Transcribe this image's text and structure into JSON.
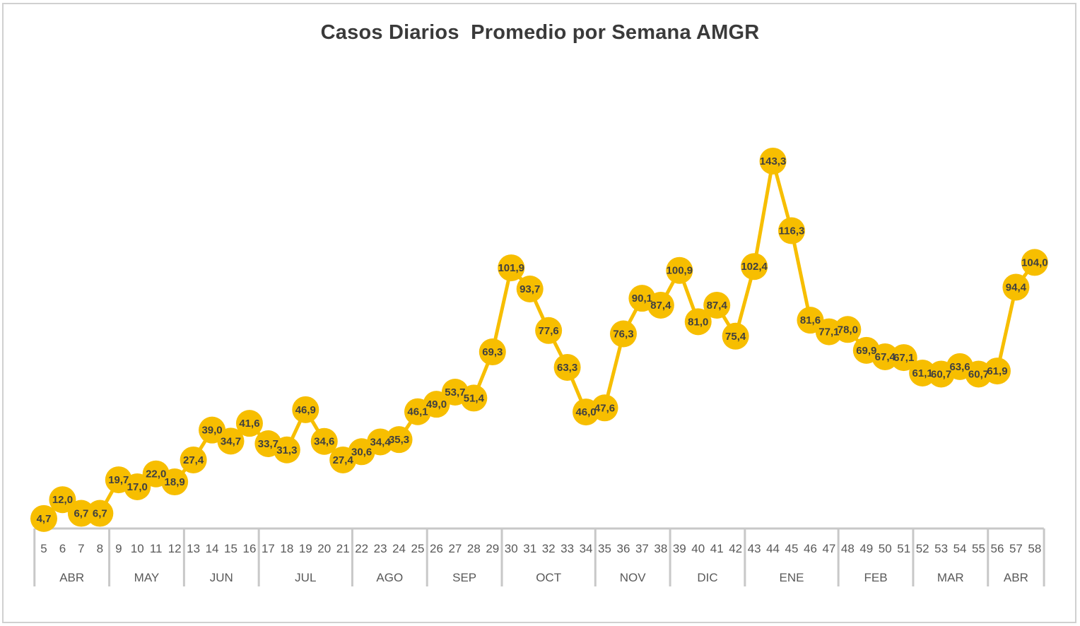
{
  "chart_data": {
    "type": "line",
    "title": "Casos Diarios  Promedio por Semana AMGR",
    "x": [
      5,
      6,
      7,
      8,
      9,
      10,
      11,
      12,
      13,
      14,
      15,
      16,
      17,
      18,
      19,
      20,
      21,
      22,
      23,
      24,
      25,
      26,
      27,
      28,
      29,
      30,
      31,
      32,
      33,
      34,
      35,
      36,
      37,
      38,
      39,
      40,
      41,
      42,
      43,
      44,
      45,
      46,
      47,
      48,
      49,
      50,
      51,
      52,
      53,
      54,
      55,
      56,
      57,
      58
    ],
    "x_tick_labels": [
      "5",
      "6",
      "7",
      "8",
      "9",
      "10",
      "11",
      "12",
      "13",
      "14",
      "15",
      "16",
      "17",
      "18",
      "19",
      "20",
      "21",
      "22",
      "23",
      "24",
      "25",
      "26",
      "27",
      "28",
      "29",
      "30",
      "31",
      "32",
      "33",
      "34",
      "35",
      "36",
      "37",
      "38",
      "39",
      "40",
      "41",
      "42",
      "43",
      "44",
      "45",
      "46",
      "47",
      "48",
      "49",
      "50",
      "51",
      "52",
      "53",
      "54",
      "55",
      "56",
      "57",
      "58"
    ],
    "values": [
      4.7,
      12.0,
      6.7,
      6.7,
      19.7,
      17.0,
      22.0,
      18.9,
      27.4,
      39.0,
      34.7,
      41.6,
      33.7,
      31.3,
      46.9,
      34.6,
      27.4,
      30.6,
      34.4,
      35.3,
      46.1,
      49.0,
      53.7,
      51.4,
      69.3,
      101.9,
      93.7,
      77.6,
      63.3,
      46.0,
      47.6,
      76.3,
      90.1,
      87.4,
      100.9,
      81.0,
      87.4,
      75.4,
      102.4,
      143.3,
      116.3,
      81.6,
      77.1,
      78.0,
      69.9,
      67.4,
      67.1,
      61.1,
      60.7,
      63.6,
      60.7,
      61.9,
      94.4,
      104.0
    ],
    "data_labels": [
      "4,7",
      "12,0",
      "6,7",
      "6,7",
      "19,7",
      "17,0",
      "22,0",
      "18,9",
      "27,4",
      "39,0",
      "34,7",
      "41,6",
      "33,7",
      "31,3",
      "46,9",
      "34,6",
      "27,4",
      "30,6",
      "34,4",
      "35,3",
      "46,1",
      "49,0",
      "53,7",
      "51,4",
      "69,3",
      "101,9",
      "93,7",
      "77,6",
      "63,3",
      "46,0",
      "47,6",
      "76,3",
      "90,1",
      "87,4",
      "100,9",
      "81,0",
      "87,4",
      "75,4",
      "102,4",
      "143,3",
      "116,3",
      "81,6",
      "77,1",
      "78,0",
      "69,9",
      "67,4",
      "67,1",
      "61,1",
      "60,7",
      "63,6",
      "60,7",
      "61,9",
      "94,4",
      "104,0"
    ],
    "month_groups": [
      {
        "label": "ABR",
        "count": 4
      },
      {
        "label": "MAY",
        "count": 4
      },
      {
        "label": "JUN",
        "count": 4
      },
      {
        "label": "JUL",
        "count": 5
      },
      {
        "label": "AGO",
        "count": 4
      },
      {
        "label": "SEP",
        "count": 4
      },
      {
        "label": "OCT",
        "count": 5
      },
      {
        "label": "NOV",
        "count": 4
      },
      {
        "label": "DIC",
        "count": 4
      },
      {
        "label": "ENE",
        "count": 5
      },
      {
        "label": "FEB",
        "count": 4
      },
      {
        "label": "MAR",
        "count": 4
      },
      {
        "label": "ABR",
        "count": 3
      }
    ],
    "xlabel": "",
    "ylabel": "",
    "grid": false,
    "legend": "none",
    "colors": {
      "line": "#F7BE00",
      "marker": "#F7BE00",
      "label": "#404040",
      "axis": "#c8c8c8"
    }
  }
}
